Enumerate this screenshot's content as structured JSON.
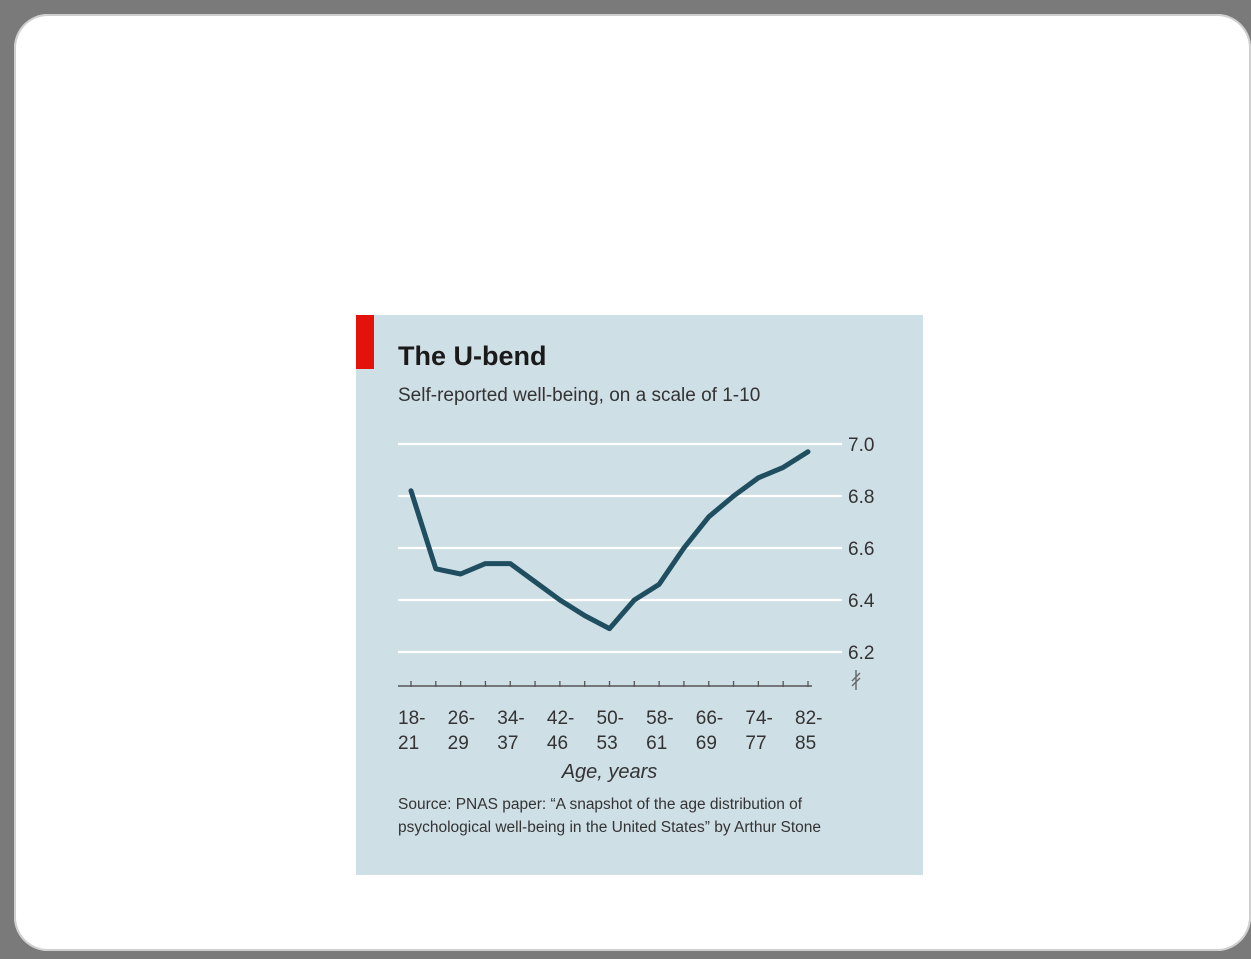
{
  "chart_data": {
    "type": "line",
    "title": "The U-bend",
    "subtitle": "Self-reported well-being, on a scale of 1-10",
    "xlabel": "Age, years",
    "ylabel": "",
    "ylim": [
      6.2,
      7.0
    ],
    "yticks": [
      "7.0",
      "6.8",
      "6.6",
      "6.4",
      "6.2"
    ],
    "y_axis_position": "right",
    "y_axis_break": true,
    "grid": true,
    "x_tick_labels": [
      {
        "top": "18-",
        "bottom": "21"
      },
      {
        "top": "26-",
        "bottom": "29"
      },
      {
        "top": "34-",
        "bottom": "37"
      },
      {
        "top": "42-",
        "bottom": "46"
      },
      {
        "top": "50-",
        "bottom": "53"
      },
      {
        "top": "58-",
        "bottom": "61"
      },
      {
        "top": "66-",
        "bottom": "69"
      },
      {
        "top": "74-",
        "bottom": "77"
      },
      {
        "top": "82-",
        "bottom": "85"
      }
    ],
    "series": [
      {
        "values": [
          6.82,
          6.52,
          6.5,
          6.54,
          6.54,
          6.47,
          6.4,
          6.34,
          6.29,
          6.4,
          6.46,
          6.6,
          6.72,
          6.8,
          6.87,
          6.91,
          6.97
        ]
      }
    ],
    "source": "Source: PNAS paper: “A snapshot of the age distribution of psychological well-being in the United States” by Arthur Stone",
    "colors": {
      "line": "#1f4e61",
      "grid": "#ffffff",
      "accent": "#e3120b",
      "background": "#cfdfe6"
    }
  }
}
